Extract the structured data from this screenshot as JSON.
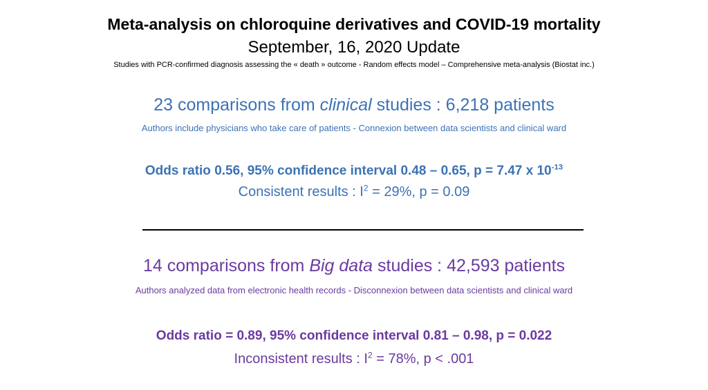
{
  "header": {
    "title": "Meta-analysis on chloroquine derivatives and COVID-19 mortality",
    "subtitle": "September, 16, 2020 Update",
    "note": "Studies with PCR-confirmed diagnosis assessing the « death » outcome - Random effects model – Comprehensive meta-analysis (Biostat inc.)"
  },
  "clinical": {
    "heading_pre": "23 comparisons from ",
    "heading_em": "clinical",
    "heading_post": " studies : 6,218 patients",
    "description": "Authors include physicians who take care of patients - Connexion between data scientists and clinical ward",
    "stat_pre": "Odds ratio 0.56, 95% confidence interval 0.48 – 0.65, p = 7.47 x 10",
    "stat_sup": "-13",
    "consistency_pre": "Consistent results : I",
    "consistency_sup": "2",
    "consistency_post": " = 29%, p = 0.09"
  },
  "bigdata": {
    "heading_pre": "14 comparisons from ",
    "heading_em": "Big data",
    "heading_post": " studies : 42,593 patients",
    "description": "Authors analyzed data from electronic health records - Disconnexion between data scientists and clinical ward",
    "stat": "Odds ratio =  0.89, 95% confidence interval 0.81 – 0.98, p = 0.022",
    "consistency_pre": "Inconsistent results : I",
    "consistency_sup": "2",
    "consistency_post": " = 78%, p < .001"
  },
  "colors": {
    "clinical": "#3c72b5",
    "bigdata": "#6a3aa0"
  }
}
